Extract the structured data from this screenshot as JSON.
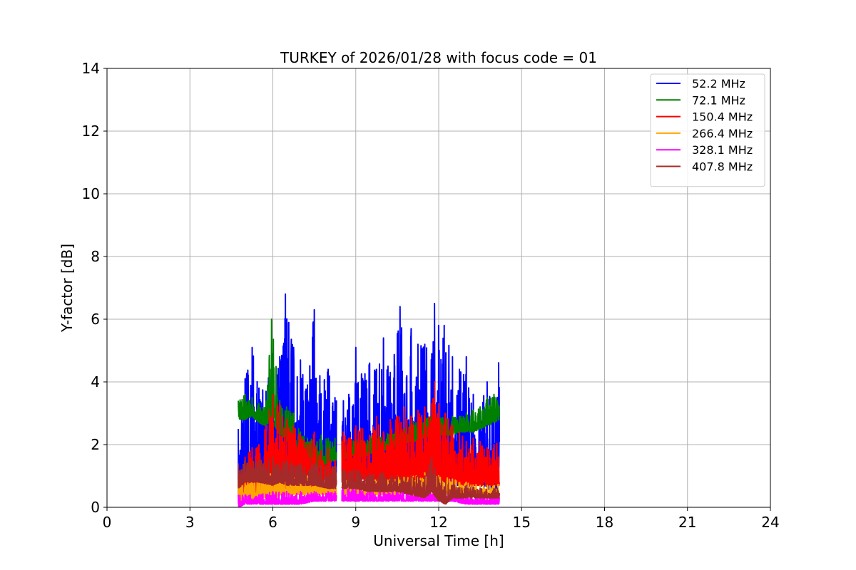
{
  "chart_data": {
    "type": "line",
    "title": "TURKEY of 2026/01/28 with focus code = 01",
    "xlabel": "Universal Time [h]",
    "ylabel": "Y-factor [dB]",
    "xlim": [
      0,
      24
    ],
    "ylim": [
      0,
      14
    ],
    "xticks": [
      0,
      3,
      6,
      9,
      12,
      15,
      18,
      21,
      24
    ],
    "yticks": [
      0,
      2,
      4,
      6,
      8,
      10,
      12,
      14
    ],
    "grid": true,
    "legend_position": "top-right",
    "gaps": [
      [
        8.3,
        8.5
      ]
    ],
    "series": [
      {
        "name": "52.2 MHz",
        "color": "#0000ff",
        "x": [
          4.75,
          5.0,
          5.25,
          5.5,
          5.75,
          6.0,
          6.25,
          6.45,
          6.75,
          7.0,
          7.25,
          7.5,
          7.7,
          8.0,
          8.25,
          8.55,
          8.75,
          9.0,
          9.25,
          9.5,
          9.75,
          10.0,
          10.25,
          10.6,
          10.85,
          11.0,
          11.25,
          11.5,
          11.75,
          11.85,
          12.0,
          12.2,
          12.5,
          12.75,
          13.0,
          13.25,
          13.5,
          13.75,
          14.0,
          14.2
        ],
        "min": [
          0.3,
          0.7,
          0.6,
          0.9,
          0.7,
          1.0,
          0.8,
          0.8,
          0.9,
          0.7,
          0.8,
          0.9,
          0.8,
          0.7,
          0.8,
          0.8,
          0.9,
          0.8,
          0.9,
          0.8,
          0.8,
          0.9,
          0.8,
          0.8,
          0.9,
          0.9,
          0.8,
          0.9,
          0.9,
          0.8,
          0.9,
          0.8,
          0.7,
          0.7,
          0.6,
          0.7,
          0.7,
          0.6,
          0.5,
          0.6
        ],
        "max": [
          2.5,
          4.1,
          5.1,
          3.8,
          3.7,
          4.9,
          4.8,
          6.8,
          5.1,
          4.7,
          3.9,
          6.3,
          4.2,
          4.4,
          3.5,
          3.4,
          3.6,
          5.1,
          4.1,
          4.6,
          4.4,
          5.4,
          4.3,
          6.4,
          4.2,
          5.7,
          5.2,
          5.2,
          4.9,
          6.5,
          5.8,
          5.8,
          4.8,
          4.4,
          4.8,
          3.6,
          3.2,
          4.0,
          3.3,
          4.9
        ]
      },
      {
        "name": "72.1 MHz",
        "color": "#008000",
        "x": [
          4.75,
          5.0,
          5.25,
          5.5,
          5.75,
          5.95,
          6.25,
          6.5,
          6.75,
          7.0,
          7.25,
          7.5,
          7.75,
          8.0,
          8.25,
          8.55,
          8.75,
          9.0,
          9.25,
          9.5,
          9.75,
          10.0,
          10.25,
          10.5,
          10.75,
          11.0,
          11.25,
          11.5,
          11.75,
          12.0,
          12.25,
          12.5,
          12.75,
          13.0,
          13.25,
          13.5,
          13.75,
          14.0,
          14.2
        ],
        "min": [
          2.8,
          2.8,
          2.9,
          2.7,
          2.6,
          2.8,
          2.3,
          2.2,
          1.6,
          1.4,
          1.3,
          1.2,
          1.3,
          1.4,
          1.5,
          1.5,
          1.6,
          1.7,
          1.6,
          1.7,
          1.8,
          1.8,
          1.9,
          1.9,
          2.0,
          2.1,
          2.1,
          2.2,
          2.3,
          2.3,
          2.3,
          2.3,
          2.4,
          2.4,
          2.4,
          2.5,
          2.6,
          2.7,
          2.8
        ],
        "max": [
          3.4,
          3.6,
          3.5,
          3.3,
          3.2,
          6.0,
          3.4,
          3.2,
          3.0,
          2.4,
          2.2,
          2.2,
          2.3,
          2.2,
          2.2,
          2.0,
          2.1,
          2.2,
          2.2,
          2.3,
          2.4,
          2.3,
          2.5,
          2.5,
          2.6,
          2.7,
          2.8,
          2.9,
          3.0,
          3.0,
          2.9,
          2.9,
          2.9,
          3.0,
          3.1,
          3.2,
          3.5,
          3.6,
          3.5
        ]
      },
      {
        "name": "150.4 MHz",
        "color": "#ff0000",
        "x": [
          4.75,
          5.0,
          5.25,
          5.5,
          5.75,
          6.0,
          6.25,
          6.5,
          6.75,
          7.0,
          7.25,
          7.5,
          7.75,
          8.0,
          8.25,
          8.55,
          8.75,
          9.0,
          9.25,
          9.5,
          9.75,
          10.0,
          10.25,
          10.5,
          10.75,
          11.0,
          11.25,
          11.5,
          11.75,
          11.85,
          12.0,
          12.25,
          12.5,
          12.75,
          13.0,
          13.25,
          13.5,
          13.75,
          14.0,
          14.2
        ],
        "min": [
          0.3,
          0.4,
          0.4,
          0.4,
          0.4,
          0.5,
          0.5,
          0.6,
          0.6,
          0.6,
          0.6,
          0.6,
          0.6,
          0.6,
          0.7,
          0.8,
          0.8,
          0.8,
          0.9,
          0.8,
          0.8,
          0.9,
          0.8,
          0.8,
          0.8,
          0.7,
          0.8,
          0.8,
          0.8,
          0.8,
          0.8,
          0.8,
          0.8,
          0.7,
          0.7,
          0.7,
          0.7,
          0.7,
          0.7,
          0.7
        ],
        "max": [
          1.0,
          1.6,
          1.9,
          2.0,
          2.6,
          3.6,
          3.3,
          2.8,
          2.6,
          2.3,
          2.0,
          2.4,
          1.8,
          1.9,
          1.5,
          2.4,
          2.2,
          2.6,
          2.5,
          2.3,
          2.9,
          2.4,
          2.8,
          2.9,
          3.2,
          2.9,
          3.1,
          3.2,
          3.3,
          4.0,
          3.3,
          3.0,
          2.6,
          2.4,
          2.1,
          2.2,
          2.1,
          1.9,
          2.0,
          2.3
        ]
      },
      {
        "name": "266.4 MHz",
        "color": "#ffa500",
        "x": [
          4.75,
          5.0,
          5.5,
          6.0,
          6.5,
          7.0,
          7.5,
          8.0,
          8.25,
          8.55,
          9.0,
          9.5,
          10.0,
          10.5,
          11.0,
          11.5,
          12.0,
          12.5,
          13.0,
          13.5,
          14.0,
          14.2
        ],
        "min": [
          0.1,
          0.2,
          0.3,
          0.3,
          0.4,
          0.4,
          0.4,
          0.4,
          0.4,
          0.4,
          0.4,
          0.4,
          0.4,
          0.4,
          0.5,
          0.5,
          0.5,
          0.4,
          0.4,
          0.3,
          0.3,
          0.3
        ],
        "max": [
          0.9,
          0.8,
          1.0,
          1.1,
          1.0,
          1.1,
          1.0,
          1.0,
          0.9,
          0.9,
          0.8,
          0.9,
          0.9,
          1.0,
          1.0,
          1.1,
          1.0,
          0.9,
          0.8,
          0.7,
          0.7,
          0.8
        ]
      },
      {
        "name": "328.1 MHz",
        "color": "#ff00ff",
        "x": [
          4.75,
          5.0,
          5.5,
          6.0,
          6.5,
          7.0,
          7.5,
          8.0,
          8.25,
          8.55,
          9.0,
          9.5,
          10.0,
          10.5,
          11.0,
          11.5,
          12.0,
          12.5,
          13.0,
          13.5,
          14.0,
          14.2
        ],
        "min": [
          0.0,
          0.1,
          0.1,
          0.1,
          0.1,
          0.1,
          0.2,
          0.2,
          0.2,
          0.2,
          0.2,
          0.2,
          0.2,
          0.2,
          0.2,
          0.2,
          0.2,
          0.2,
          0.1,
          0.1,
          0.1,
          0.1
        ],
        "max": [
          0.4,
          0.4,
          0.4,
          0.5,
          0.5,
          0.5,
          0.5,
          0.5,
          0.5,
          0.6,
          0.6,
          0.5,
          0.5,
          0.5,
          0.5,
          0.5,
          0.5,
          0.4,
          0.4,
          0.4,
          0.4,
          0.4
        ]
      },
      {
        "name": "407.8 MHz",
        "color": "#a52a2a",
        "x": [
          4.75,
          5.0,
          5.5,
          6.0,
          6.25,
          6.5,
          7.0,
          7.5,
          8.0,
          8.25,
          8.55,
          9.0,
          9.5,
          10.0,
          10.5,
          11.0,
          11.5,
          11.75,
          12.0,
          12.25,
          12.5,
          13.0,
          13.5,
          14.0,
          14.2
        ],
        "min": [
          0.6,
          0.8,
          0.8,
          0.7,
          0.8,
          0.7,
          0.7,
          0.7,
          0.6,
          0.6,
          0.6,
          0.6,
          0.5,
          0.5,
          0.5,
          0.4,
          0.3,
          0.5,
          0.2,
          0.1,
          0.3,
          0.3,
          0.3,
          0.3,
          0.3
        ],
        "max": [
          1.4,
          1.5,
          1.5,
          1.6,
          1.4,
          1.5,
          1.4,
          1.4,
          1.3,
          1.3,
          1.2,
          1.2,
          1.1,
          1.1,
          1.0,
          1.0,
          1.0,
          1.6,
          0.9,
          0.8,
          0.7,
          0.7,
          0.6,
          0.6,
          0.7
        ]
      }
    ]
  }
}
